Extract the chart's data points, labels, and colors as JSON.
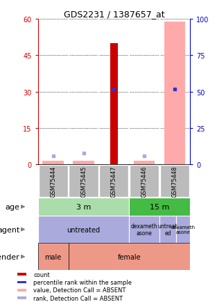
{
  "title": "GDS2231 / 1387657_at",
  "samples": [
    "GSM75444",
    "GSM75445",
    "GSM75447",
    "GSM75446",
    "GSM75448"
  ],
  "count_values": [
    0,
    0,
    50,
    0,
    0
  ],
  "count_color": "#cc0000",
  "pink_values": [
    1.5,
    1.5,
    0,
    1.5,
    59
  ],
  "pink_color": "#ffaaaa",
  "blue_dot_y": [
    0,
    0,
    31,
    0,
    31
  ],
  "blue_dot_show": [
    false,
    false,
    true,
    false,
    true
  ],
  "blue_dot_color": "#3333cc",
  "light_blue_y": [
    3.5,
    4.5,
    0,
    3.5,
    0
  ],
  "light_blue_show": [
    true,
    true,
    false,
    true,
    false
  ],
  "light_blue_color": "#aaaadd",
  "ylim_left": [
    0,
    60
  ],
  "ylim_right": [
    0,
    100
  ],
  "yticks_left": [
    0,
    15,
    30,
    45,
    60
  ],
  "yticks_right": [
    0,
    25,
    50,
    75,
    100
  ],
  "left_axis_color": "#cc0000",
  "right_axis_color": "#0000cc",
  "sample_col_color": "#bbbbbb",
  "age_3m_color": "#aaddaa",
  "age_15m_color": "#44bb44",
  "agent_color": "#aaaadd",
  "gender_color": "#ee9988",
  "legend_items": [
    [
      "#cc0000",
      "count"
    ],
    [
      "#3333cc",
      "percentile rank within the sample"
    ],
    [
      "#ffaaaa",
      "value, Detection Call = ABSENT"
    ],
    [
      "#aaaadd",
      "rank, Detection Call = ABSENT"
    ]
  ]
}
